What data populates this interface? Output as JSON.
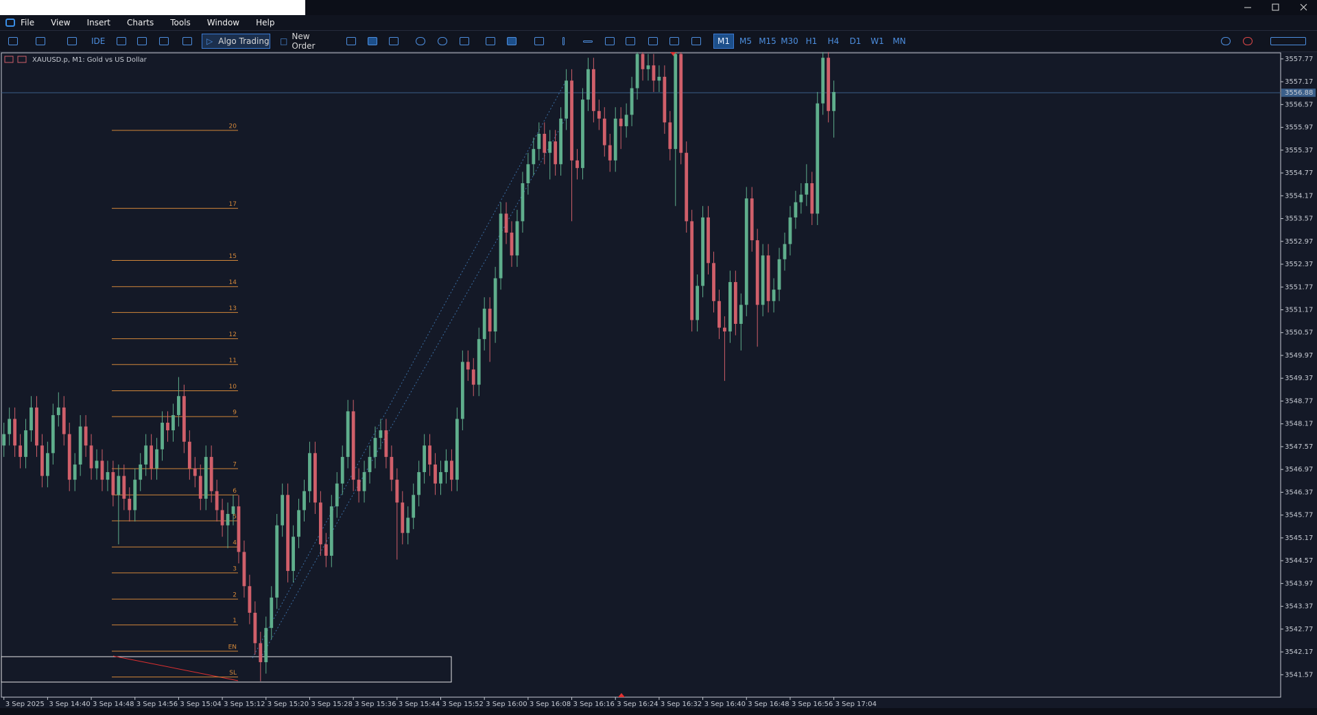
{
  "window": {
    "menu": [
      "File",
      "View",
      "Insert",
      "Charts",
      "Tools",
      "Window",
      "Help"
    ]
  },
  "toolbar": {
    "ide": "IDE",
    "algo_trading": "Algo Trading",
    "new_order": "New Order",
    "timeframes": [
      "M1",
      "M5",
      "M15",
      "M30",
      "H1",
      "H4",
      "D1",
      "W1",
      "MN"
    ],
    "active_timeframe": 0
  },
  "chart": {
    "type": "candlestick",
    "title": "XAUUSD.p, M1:  Gold vs US Dollar",
    "colors": {
      "up": "#5fae8c",
      "down": "#d05f6a",
      "level": "#d4883a",
      "bid": "#3b5f8a"
    },
    "ylim": [
      3540.98,
      3557.93
    ],
    "yticks": [
      3557.77,
      3557.17,
      3556.57,
      3555.97,
      3555.37,
      3554.77,
      3554.17,
      3553.57,
      3552.97,
      3552.37,
      3551.77,
      3551.17,
      3550.57,
      3549.97,
      3549.37,
      3548.77,
      3548.17,
      3547.57,
      3546.97,
      3546.37,
      3545.77,
      3545.17,
      3544.57,
      3543.97,
      3543.37,
      3542.77,
      3542.17,
      3541.57
    ],
    "xticks": [
      "3 Sep 2025",
      "3 Sep 14:40",
      "3 Sep 14:48",
      "3 Sep 14:56",
      "3 Sep 15:04",
      "3 Sep 15:12",
      "3 Sep 15:20",
      "3 Sep 15:28",
      "3 Sep 15:36",
      "3 Sep 15:44",
      "3 Sep 15:52",
      "3 Sep 16:00",
      "3 Sep 16:08",
      "3 Sep 16:16",
      "3 Sep 16:24",
      "3 Sep 16:32",
      "3 Sep 16:40",
      "3 Sep 16:48",
      "3 Sep 16:56",
      "3 Sep 17:04"
    ],
    "bid": 3556.88,
    "levels": [
      {
        "label": "20",
        "price": 3555.89
      },
      {
        "label": "17",
        "price": 3553.84
      },
      {
        "label": "15",
        "price": 3552.47
      },
      {
        "label": "14",
        "price": 3551.78
      },
      {
        "label": "13",
        "price": 3551.1
      },
      {
        "label": "12",
        "price": 3550.41
      },
      {
        "label": "11",
        "price": 3549.73
      },
      {
        "label": "10",
        "price": 3549.04
      },
      {
        "label": "9",
        "price": 3548.36
      },
      {
        "label": "7",
        "price": 3546.99
      },
      {
        "label": "6",
        "price": 3546.3
      },
      {
        "label": "5",
        "price": 3545.62
      },
      {
        "label": "4",
        "price": 3544.93
      },
      {
        "label": "3",
        "price": 3544.25
      },
      {
        "label": "2",
        "price": 3543.56
      },
      {
        "label": "1",
        "price": 3542.88
      },
      {
        "label": "EN",
        "price": 3542.19
      },
      {
        "label": "SL",
        "price": 3541.51
      }
    ],
    "candles": [
      [
        3547.6,
        3548.2,
        3547.3,
        3547.9
      ],
      [
        3547.9,
        3548.6,
        3547.6,
        3548.3
      ],
      [
        3548.3,
        3548.6,
        3547.3,
        3547.6
      ],
      [
        3547.6,
        3547.9,
        3547.0,
        3547.3
      ],
      [
        3547.3,
        3548.3,
        3547.0,
        3548.0
      ],
      [
        3548.0,
        3548.9,
        3547.7,
        3548.6
      ],
      [
        3548.6,
        3548.9,
        3547.3,
        3547.6
      ],
      [
        3547.6,
        3547.9,
        3546.5,
        3546.8
      ],
      [
        3546.8,
        3547.7,
        3546.5,
        3547.4
      ],
      [
        3547.4,
        3548.7,
        3547.1,
        3548.4
      ],
      [
        3548.4,
        3549.0,
        3548.1,
        3548.6
      ],
      [
        3548.6,
        3548.9,
        3547.6,
        3547.9
      ],
      [
        3547.9,
        3548.2,
        3546.4,
        3546.7
      ],
      [
        3546.7,
        3547.4,
        3546.4,
        3547.1
      ],
      [
        3547.1,
        3548.4,
        3546.8,
        3548.1
      ],
      [
        3548.1,
        3548.4,
        3547.3,
        3547.6
      ],
      [
        3547.6,
        3547.9,
        3546.7,
        3547.0
      ],
      [
        3547.0,
        3547.5,
        3546.7,
        3547.2
      ],
      [
        3547.2,
        3547.5,
        3546.4,
        3546.7
      ],
      [
        3546.7,
        3547.2,
        3546.4,
        3546.9
      ],
      [
        3546.9,
        3547.2,
        3546.0,
        3546.3
      ],
      [
        3546.3,
        3547.1,
        3545.0,
        3546.8
      ],
      [
        3546.8,
        3547.1,
        3545.9,
        3546.2
      ],
      [
        3546.2,
        3546.5,
        3545.6,
        3545.9
      ],
      [
        3545.9,
        3547.0,
        3545.6,
        3546.7
      ],
      [
        3546.7,
        3547.4,
        3546.4,
        3547.1
      ],
      [
        3547.1,
        3547.9,
        3546.8,
        3547.6
      ],
      [
        3547.6,
        3547.9,
        3546.7,
        3547.0
      ],
      [
        3547.0,
        3547.8,
        3546.7,
        3547.5
      ],
      [
        3547.5,
        3548.5,
        3547.2,
        3548.2
      ],
      [
        3548.2,
        3548.5,
        3547.7,
        3548.0
      ],
      [
        3548.0,
        3548.7,
        3547.7,
        3548.4
      ],
      [
        3548.4,
        3549.4,
        3548.1,
        3548.9
      ],
      [
        3548.9,
        3549.2,
        3547.4,
        3547.7
      ],
      [
        3547.7,
        3548.0,
        3546.7,
        3547.0
      ],
      [
        3547.0,
        3547.3,
        3546.5,
        3546.8
      ],
      [
        3546.8,
        3547.1,
        3545.9,
        3546.2
      ],
      [
        3546.2,
        3547.6,
        3545.9,
        3547.3
      ],
      [
        3547.3,
        3547.6,
        3546.1,
        3546.4
      ],
      [
        3546.4,
        3546.7,
        3545.6,
        3545.9
      ],
      [
        3545.9,
        3546.2,
        3545.2,
        3545.5
      ],
      [
        3545.5,
        3546.1,
        3544.9,
        3545.8
      ],
      [
        3545.8,
        3546.3,
        3545.5,
        3546.0
      ],
      [
        3546.0,
        3546.3,
        3544.5,
        3544.8
      ],
      [
        3544.8,
        3545.1,
        3543.6,
        3543.9
      ],
      [
        3543.9,
        3544.2,
        3542.9,
        3543.2
      ],
      [
        3543.2,
        3543.5,
        3542.1,
        3542.4
      ],
      [
        3542.4,
        3542.7,
        3541.4,
        3541.9
      ],
      [
        3541.9,
        3543.1,
        3541.6,
        3542.8
      ],
      [
        3542.8,
        3543.9,
        3542.5,
        3543.6
      ],
      [
        3543.6,
        3545.8,
        3543.3,
        3545.5
      ],
      [
        3545.5,
        3546.6,
        3545.2,
        3546.3
      ],
      [
        3546.3,
        3546.6,
        3544.0,
        3544.3
      ],
      [
        3544.3,
        3545.5,
        3544.0,
        3545.2
      ],
      [
        3545.2,
        3546.2,
        3544.9,
        3545.9
      ],
      [
        3545.9,
        3546.7,
        3545.6,
        3546.4
      ],
      [
        3546.4,
        3547.7,
        3546.1,
        3547.4
      ],
      [
        3547.4,
        3547.7,
        3545.8,
        3546.1
      ],
      [
        3546.1,
        3546.4,
        3544.7,
        3545.0
      ],
      [
        3545.0,
        3545.3,
        3544.4,
        3544.7
      ],
      [
        3544.7,
        3546.3,
        3544.4,
        3546.0
      ],
      [
        3546.0,
        3546.9,
        3545.7,
        3546.6
      ],
      [
        3546.6,
        3547.6,
        3546.3,
        3547.3
      ],
      [
        3547.3,
        3548.8,
        3547.0,
        3548.5
      ],
      [
        3548.5,
        3548.8,
        3546.4,
        3546.7
      ],
      [
        3546.7,
        3547.0,
        3546.1,
        3546.4
      ],
      [
        3546.4,
        3547.2,
        3546.1,
        3546.9
      ],
      [
        3546.9,
        3547.6,
        3546.6,
        3547.3
      ],
      [
        3547.3,
        3548.1,
        3547.0,
        3547.8
      ],
      [
        3547.8,
        3548.3,
        3547.5,
        3548.0
      ],
      [
        3548.0,
        3548.3,
        3547.0,
        3547.3
      ],
      [
        3547.3,
        3547.6,
        3546.4,
        3546.7
      ],
      [
        3546.7,
        3547.0,
        3544.6,
        3546.1
      ],
      [
        3546.1,
        3546.4,
        3545.0,
        3545.3
      ],
      [
        3545.3,
        3546.0,
        3545.0,
        3545.7
      ],
      [
        3545.7,
        3546.6,
        3545.4,
        3546.3
      ],
      [
        3546.3,
        3547.2,
        3546.0,
        3546.9
      ],
      [
        3546.9,
        3547.9,
        3546.6,
        3547.6
      ],
      [
        3547.6,
        3547.9,
        3546.8,
        3547.1
      ],
      [
        3547.1,
        3547.4,
        3546.3,
        3546.6
      ],
      [
        3546.6,
        3547.2,
        3546.3,
        3546.9
      ],
      [
        3546.9,
        3547.5,
        3546.6,
        3547.2
      ],
      [
        3547.2,
        3547.5,
        3546.4,
        3546.7
      ],
      [
        3546.7,
        3548.6,
        3546.4,
        3548.3
      ],
      [
        3548.3,
        3550.1,
        3548.0,
        3549.8
      ],
      [
        3549.8,
        3550.1,
        3549.3,
        3549.6
      ],
      [
        3549.6,
        3549.9,
        3548.9,
        3549.2
      ],
      [
        3549.2,
        3550.7,
        3548.9,
        3550.4
      ],
      [
        3550.4,
        3551.5,
        3550.1,
        3551.2
      ],
      [
        3551.2,
        3551.5,
        3549.8,
        3550.6
      ],
      [
        3550.6,
        3552.3,
        3550.3,
        3552.0
      ],
      [
        3552.0,
        3554.0,
        3551.7,
        3553.7
      ],
      [
        3553.7,
        3554.0,
        3552.9,
        3553.2
      ],
      [
        3553.2,
        3553.5,
        3552.3,
        3552.6
      ],
      [
        3552.6,
        3553.8,
        3552.3,
        3553.5
      ],
      [
        3553.5,
        3554.8,
        3553.2,
        3554.5
      ],
      [
        3554.5,
        3555.3,
        3554.2,
        3555.0
      ],
      [
        3555.0,
        3555.7,
        3554.7,
        3555.4
      ],
      [
        3555.4,
        3556.1,
        3555.1,
        3555.8
      ],
      [
        3555.8,
        3556.1,
        3555.0,
        3555.3
      ],
      [
        3555.3,
        3555.9,
        3554.6,
        3555.6
      ],
      [
        3555.6,
        3555.9,
        3554.7,
        3555.0
      ],
      [
        3555.0,
        3556.5,
        3554.7,
        3556.2
      ],
      [
        3556.2,
        3557.5,
        3555.9,
        3557.2
      ],
      [
        3557.2,
        3557.5,
        3553.5,
        3555.1
      ],
      [
        3555.1,
        3555.4,
        3554.6,
        3554.9
      ],
      [
        3554.9,
        3557.0,
        3554.6,
        3556.7
      ],
      [
        3556.7,
        3557.8,
        3556.4,
        3557.5
      ],
      [
        3557.5,
        3557.8,
        3556.1,
        3556.4
      ],
      [
        3556.4,
        3556.7,
        3555.9,
        3556.2
      ],
      [
        3556.2,
        3556.5,
        3555.2,
        3555.5
      ],
      [
        3555.5,
        3555.8,
        3554.8,
        3555.1
      ],
      [
        3555.1,
        3556.5,
        3554.8,
        3556.2
      ],
      [
        3556.2,
        3556.5,
        3555.4,
        3556.0
      ],
      [
        3556.0,
        3556.6,
        3555.7,
        3556.3
      ],
      [
        3556.3,
        3557.3,
        3556.0,
        3557.0
      ],
      [
        3557.0,
        3558.2,
        3556.7,
        3557.9
      ],
      [
        3557.9,
        3558.2,
        3557.2,
        3557.5
      ],
      [
        3557.5,
        3557.9,
        3557.2,
        3557.6
      ],
      [
        3557.6,
        3557.9,
        3556.9,
        3557.2
      ],
      [
        3557.2,
        3557.6,
        3556.9,
        3557.3
      ],
      [
        3557.3,
        3557.6,
        3555.8,
        3556.1
      ],
      [
        3556.1,
        3556.4,
        3555.1,
        3555.4
      ],
      [
        3555.4,
        3558.2,
        3553.9,
        3557.9
      ],
      [
        3557.9,
        3558.2,
        3555.0,
        3555.3
      ],
      [
        3555.3,
        3555.6,
        3553.2,
        3553.5
      ],
      [
        3553.5,
        3553.8,
        3550.6,
        3550.9
      ],
      [
        3550.9,
        3552.1,
        3550.6,
        3551.8
      ],
      [
        3551.8,
        3553.9,
        3551.5,
        3553.6
      ],
      [
        3553.6,
        3553.9,
        3552.1,
        3552.4
      ],
      [
        3552.4,
        3552.7,
        3551.1,
        3551.4
      ],
      [
        3551.4,
        3551.7,
        3550.4,
        3550.7
      ],
      [
        3550.7,
        3551.0,
        3549.3,
        3550.6
      ],
      [
        3550.6,
        3552.2,
        3550.3,
        3551.9
      ],
      [
        3551.9,
        3552.2,
        3550.5,
        3550.8
      ],
      [
        3550.8,
        3551.6,
        3550.1,
        3551.3
      ],
      [
        3551.3,
        3554.4,
        3551.0,
        3554.1
      ],
      [
        3554.1,
        3554.4,
        3552.7,
        3553.0
      ],
      [
        3553.0,
        3553.3,
        3550.2,
        3551.3
      ],
      [
        3551.3,
        3552.9,
        3551.0,
        3552.6
      ],
      [
        3552.6,
        3552.9,
        3551.1,
        3551.4
      ],
      [
        3551.4,
        3552.0,
        3551.1,
        3551.7
      ],
      [
        3551.7,
        3552.8,
        3551.4,
        3552.5
      ],
      [
        3552.5,
        3553.2,
        3552.2,
        3552.9
      ],
      [
        3552.9,
        3553.9,
        3552.6,
        3553.6
      ],
      [
        3553.6,
        3554.3,
        3553.3,
        3554.0
      ],
      [
        3554.0,
        3554.5,
        3553.7,
        3554.2
      ],
      [
        3554.2,
        3555.0,
        3553.9,
        3554.5
      ],
      [
        3554.5,
        3554.8,
        3553.4,
        3553.7
      ],
      [
        3553.7,
        3556.9,
        3553.4,
        3556.6
      ],
      [
        3556.6,
        3558.1,
        3556.3,
        3557.8
      ],
      [
        3557.8,
        3558.1,
        3556.1,
        3556.4
      ],
      [
        3556.4,
        3557.2,
        3555.7,
        3556.9
      ]
    ]
  }
}
